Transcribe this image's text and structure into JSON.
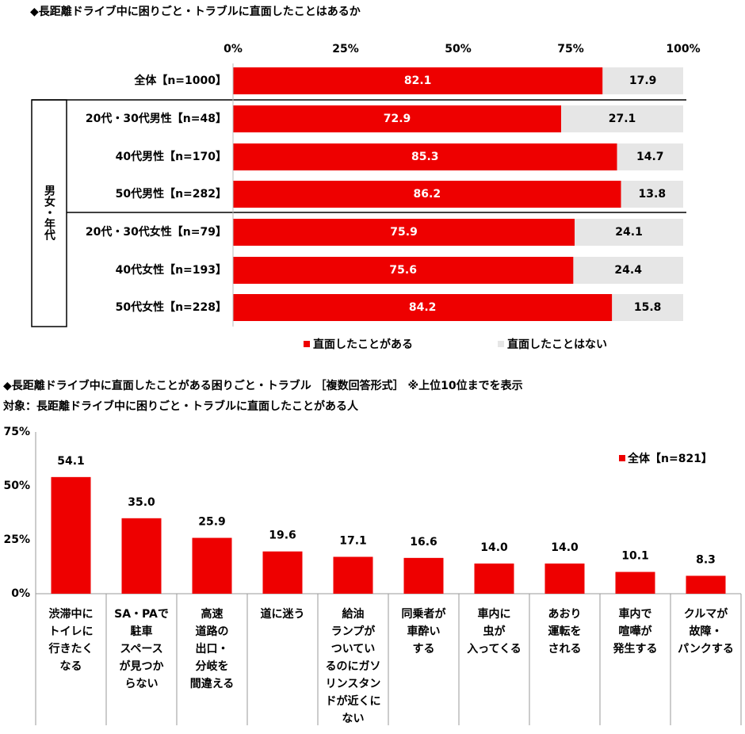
{
  "chart_data": [
    {
      "type": "stacked-bar-horizontal",
      "title": "◆長距離ドライブ中に困りごと・トラブルに直面したことはあるか",
      "group_label": "男女・年代",
      "categories": [
        "全体【n=1000】",
        "20代・30代男性【n=48】",
        "40代男性【n=170】",
        "50代男性【n=282】",
        "20代・30代女性【n=79】",
        "40代女性【n=193】",
        "50代女性【n=228】"
      ],
      "series": [
        {
          "name": "直面したことがある",
          "color": "#ee0000",
          "values": [
            82.1,
            72.9,
            85.3,
            86.2,
            75.9,
            75.6,
            84.2
          ]
        },
        {
          "name": "直面したことはない",
          "color": "#e6e6e6",
          "values": [
            17.9,
            27.1,
            14.7,
            13.8,
            24.1,
            24.4,
            15.8
          ]
        }
      ],
      "xlim": [
        0,
        100
      ],
      "xticks": [
        {
          "value": 0,
          "label": "0%"
        },
        {
          "value": 25,
          "label": "25%"
        },
        {
          "value": 50,
          "label": "50%"
        },
        {
          "value": 75,
          "label": "75%"
        },
        {
          "value": 100,
          "label": "100%"
        }
      ]
    },
    {
      "type": "bar",
      "title": "◆長距離ドライブ中に直面したことがある困りごと・トラブル ［複数回答形式］ ※上位10位までを表示",
      "subtitle": "対象：長距離ドライブ中に困りごと・トラブルに直面したことがある人",
      "categories": [
        [
          "渋滞中に",
          "トイレに",
          "行きたく",
          "なる"
        ],
        [
          "SA・PAで",
          "駐車",
          "スペース",
          "が見つか",
          "らない"
        ],
        [
          "高速",
          "道路の",
          "出口・",
          "分岐を",
          "間違える"
        ],
        [
          "道に迷う"
        ],
        [
          "給油",
          "ランプが",
          "ついてい",
          "るのにガソ",
          "リンスタン",
          "ドが近くに",
          "ない"
        ],
        [
          "同乗者が",
          "車酔い",
          "する"
        ],
        [
          "車内に",
          "虫が",
          "入ってくる"
        ],
        [
          "あおり",
          "運転を",
          "される"
        ],
        [
          "車内で",
          "喧嘩が",
          "発生する"
        ],
        [
          "クルマが",
          "故障・",
          "パンクする"
        ]
      ],
      "series": [
        {
          "name": "全体【n=821】",
          "color": "#ee0000",
          "values": [
            54.1,
            35.0,
            25.9,
            19.6,
            17.1,
            16.6,
            14.0,
            14.0,
            10.1,
            8.3
          ],
          "value_labels": [
            "54.1",
            "35.0",
            "25.9",
            "19.6",
            "17.1",
            "16.6",
            "14.0",
            "14.0",
            "10.1",
            "8.3"
          ]
        }
      ],
      "ylim": [
        0,
        75
      ],
      "yticks": [
        {
          "value": 0,
          "label": "0%"
        },
        {
          "value": 25,
          "label": "25%"
        },
        {
          "value": 50,
          "label": "50%"
        },
        {
          "value": 75,
          "label": "75%"
        }
      ]
    }
  ]
}
